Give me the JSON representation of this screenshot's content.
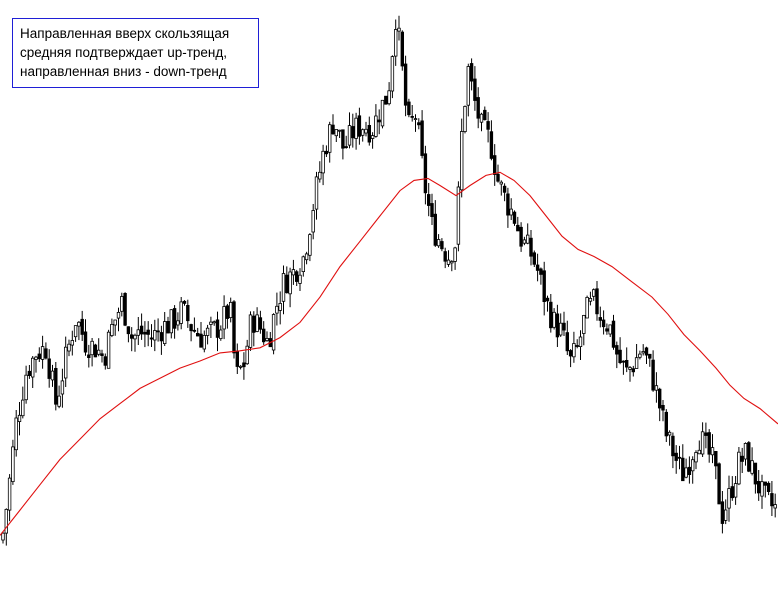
{
  "annotation": {
    "lines": [
      "Направленная вверх скользящая",
      "средняя подтверждает up-тренд,",
      "направленная вниз - down-тренд"
    ]
  },
  "colors": {
    "background": "#ffffff",
    "candle": "#000000",
    "moving_average": "#e01010",
    "annotation_border": "#1f1fd6"
  },
  "chart_data": {
    "type": "line",
    "grid": false,
    "legend": "none",
    "axes_shown": false,
    "candles_description_values": "close price path (sampled, unitless, higher = higher price)",
    "price_path": [
      [
        0,
        20
      ],
      [
        8,
        80
      ],
      [
        16,
        150
      ],
      [
        26,
        200
      ],
      [
        36,
        220
      ],
      [
        46,
        225
      ],
      [
        56,
        170
      ],
      [
        66,
        215
      ],
      [
        76,
        255
      ],
      [
        86,
        230
      ],
      [
        96,
        225
      ],
      [
        104,
        215
      ],
      [
        112,
        245
      ],
      [
        122,
        270
      ],
      [
        132,
        235
      ],
      [
        142,
        240
      ],
      [
        152,
        235
      ],
      [
        162,
        245
      ],
      [
        172,
        250
      ],
      [
        182,
        262
      ],
      [
        192,
        245
      ],
      [
        202,
        235
      ],
      [
        212,
        240
      ],
      [
        222,
        250
      ],
      [
        230,
        265
      ],
      [
        236,
        195
      ],
      [
        244,
        210
      ],
      [
        252,
        255
      ],
      [
        260,
        245
      ],
      [
        268,
        230
      ],
      [
        276,
        265
      ],
      [
        284,
        290
      ],
      [
        294,
        300
      ],
      [
        304,
        315
      ],
      [
        314,
        370
      ],
      [
        324,
        420
      ],
      [
        334,
        450
      ],
      [
        344,
        420
      ],
      [
        354,
        440
      ],
      [
        364,
        445
      ],
      [
        372,
        440
      ],
      [
        380,
        460
      ],
      [
        388,
        475
      ],
      [
        396,
        555
      ],
      [
        402,
        500
      ],
      [
        408,
        440
      ],
      [
        416,
        455
      ],
      [
        424,
        390
      ],
      [
        432,
        345
      ],
      [
        440,
        330
      ],
      [
        448,
        315
      ],
      [
        456,
        330
      ],
      [
        462,
        440
      ],
      [
        468,
        500
      ],
      [
        474,
        470
      ],
      [
        482,
        440
      ],
      [
        490,
        430
      ],
      [
        498,
        390
      ],
      [
        506,
        370
      ],
      [
        514,
        355
      ],
      [
        522,
        330
      ],
      [
        530,
        320
      ],
      [
        538,
        300
      ],
      [
        546,
        270
      ],
      [
        554,
        250
      ],
      [
        562,
        240
      ],
      [
        570,
        210
      ],
      [
        578,
        225
      ],
      [
        586,
        260
      ],
      [
        594,
        270
      ],
      [
        602,
        255
      ],
      [
        610,
        245
      ],
      [
        618,
        215
      ],
      [
        626,
        200
      ],
      [
        634,
        210
      ],
      [
        642,
        225
      ],
      [
        650,
        205
      ],
      [
        658,
        175
      ],
      [
        666,
        140
      ],
      [
        674,
        120
      ],
      [
        682,
        100
      ],
      [
        690,
        115
      ],
      [
        698,
        140
      ],
      [
        706,
        125
      ],
      [
        714,
        110
      ],
      [
        722,
        60
      ],
      [
        730,
        80
      ],
      [
        738,
        110
      ],
      [
        746,
        120
      ],
      [
        754,
        100
      ],
      [
        762,
        80
      ],
      [
        770,
        70
      ],
      [
        778,
        65
      ]
    ],
    "moving_average_path": [
      [
        0,
        40
      ],
      [
        20,
        65
      ],
      [
        40,
        90
      ],
      [
        60,
        115
      ],
      [
        80,
        135
      ],
      [
        100,
        155
      ],
      [
        120,
        170
      ],
      [
        140,
        185
      ],
      [
        160,
        195
      ],
      [
        180,
        205
      ],
      [
        200,
        212
      ],
      [
        220,
        220
      ],
      [
        240,
        222
      ],
      [
        260,
        225
      ],
      [
        280,
        235
      ],
      [
        300,
        250
      ],
      [
        320,
        275
      ],
      [
        340,
        305
      ],
      [
        360,
        330
      ],
      [
        380,
        355
      ],
      [
        400,
        380
      ],
      [
        414,
        390
      ],
      [
        428,
        392
      ],
      [
        440,
        385
      ],
      [
        456,
        375
      ],
      [
        470,
        385
      ],
      [
        486,
        395
      ],
      [
        500,
        398
      ],
      [
        514,
        390
      ],
      [
        530,
        375
      ],
      [
        546,
        355
      ],
      [
        562,
        335
      ],
      [
        578,
        322
      ],
      [
        594,
        315
      ],
      [
        612,
        305
      ],
      [
        632,
        290
      ],
      [
        652,
        275
      ],
      [
        668,
        258
      ],
      [
        684,
        238
      ],
      [
        700,
        222
      ],
      [
        716,
        205
      ],
      [
        730,
        188
      ],
      [
        744,
        175
      ],
      [
        760,
        165
      ],
      [
        778,
        150
      ]
    ]
  }
}
